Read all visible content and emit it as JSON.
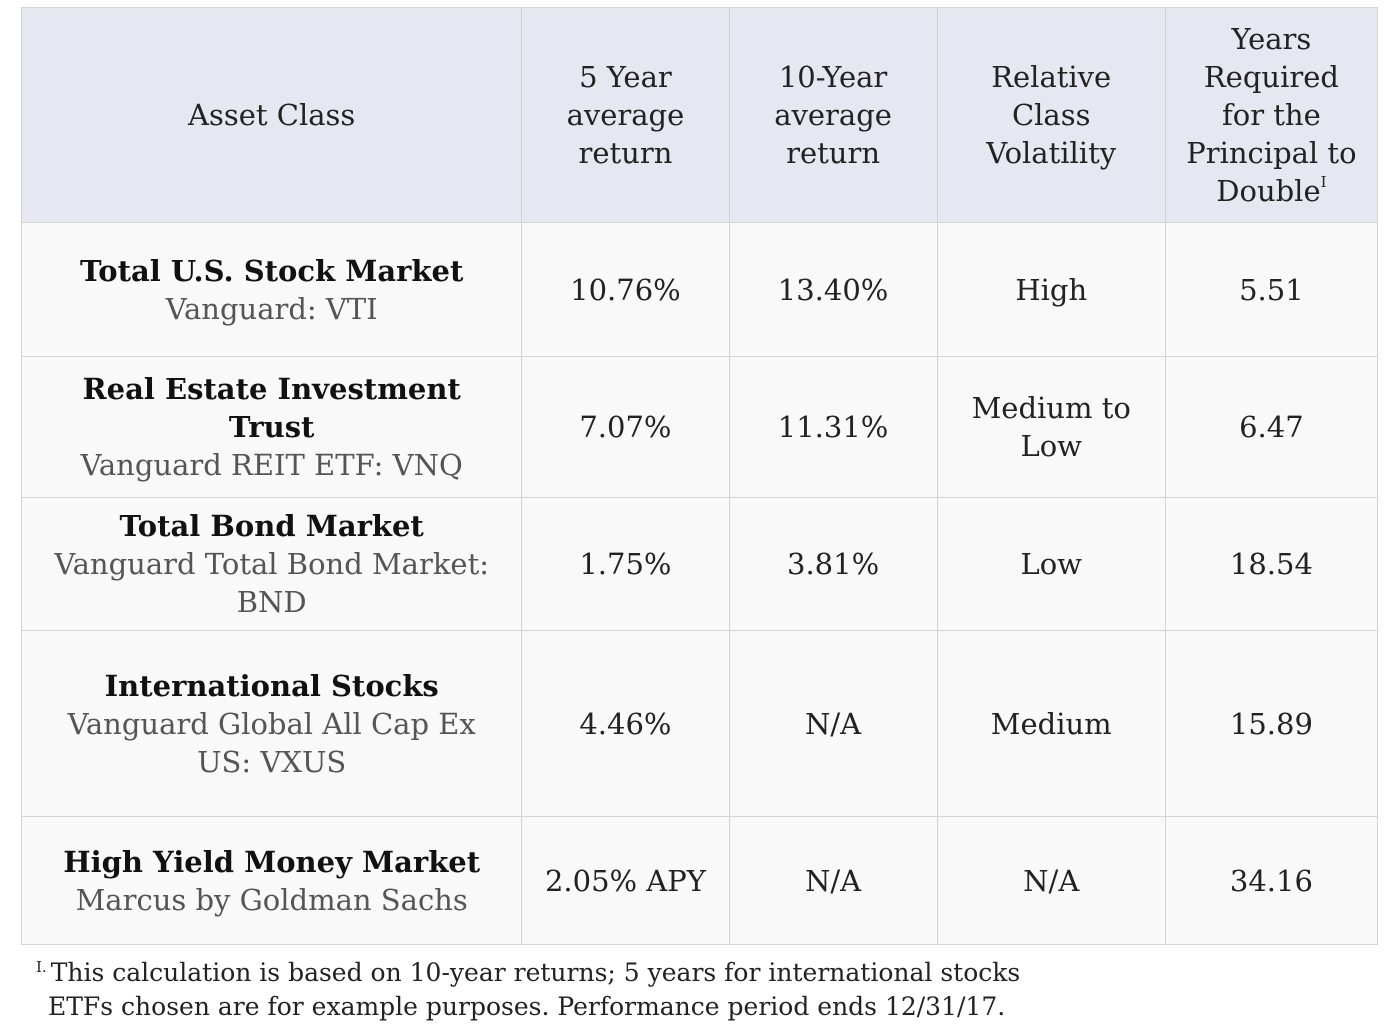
{
  "table": {
    "headers": {
      "asset_class": "Asset Class",
      "five_year": "5 Year average return",
      "ten_year": "10-Year average return",
      "volatility": "Relative Class Volatility",
      "years_to_double": "Years Required for the Principal to Double",
      "years_to_double_marker": "I"
    },
    "rows": [
      {
        "name": "Total U.S. Stock Market",
        "fund": "Vanguard: VTI",
        "five_year": "10.76%",
        "ten_year": "13.40%",
        "volatility": "High",
        "years_to_double": "5.51"
      },
      {
        "name": "Real Estate Investment Trust",
        "fund": "Vanguard REIT ETF: VNQ",
        "five_year": "7.07%",
        "ten_year": "11.31%",
        "volatility": "Medium to Low",
        "years_to_double": "6.47"
      },
      {
        "name": "Total Bond Market",
        "fund": "Vanguard Total Bond Market: BND",
        "five_year": "1.75%",
        "ten_year": "3.81%",
        "volatility": "Low",
        "years_to_double": "18.54"
      },
      {
        "name": "International Stocks",
        "fund": "Vanguard Global All Cap Ex US: VXUS",
        "five_year": "4.46%",
        "ten_year": "N/A",
        "volatility": "Medium",
        "years_to_double": "15.89"
      },
      {
        "name": "High Yield Money Market",
        "fund": "Marcus by Goldman Sachs",
        "five_year": "2.05% APY",
        "ten_year": "N/A",
        "volatility": "N/A",
        "years_to_double": "34.16"
      }
    ]
  },
  "footnote": {
    "marker": "I.",
    "line1": "This calculation is based on 10-year returns; 5 years for international stocks",
    "line2": "ETFs chosen are for example purposes.  Performance period ends 12/31/17."
  },
  "colors": {
    "header_background": "#e5e8f1",
    "row_background": "#f9f9f9",
    "border": "#d4d4d4",
    "fund_text": "#555555"
  }
}
